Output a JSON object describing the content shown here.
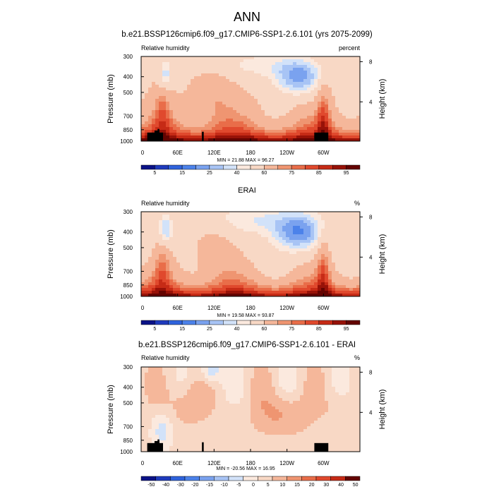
{
  "figure": {
    "title": "ANN"
  },
  "colors": {
    "blue": [
      "#0b1287",
      "#1f3bbd",
      "#2f63dc",
      "#4c82ea",
      "#7aa2ef",
      "#a8c4f5",
      "#d2e2f9"
    ],
    "neutral": "#fbe9de",
    "red": [
      "#f8d8c5",
      "#f5b79a",
      "#ef9571",
      "#e96d49",
      "#e0492d",
      "#c62b16",
      "#971208",
      "#640401"
    ],
    "terrain": "#000000"
  },
  "chart_data": [
    {
      "type": "contour",
      "title": "b.e21.BSSP126cmip6.f09_g17.CMIP6-SSP1-2.6.101 (yrs 2075-2099)",
      "left_label": "Relative humidity",
      "right_label": "percent",
      "ylabel": "Pressure (mb)",
      "y2label": "Height (km)",
      "xticks": [
        "0",
        "60E",
        "120E",
        "180",
        "120W",
        "60W"
      ],
      "xtick_lon": [
        0,
        60,
        120,
        180,
        240,
        300
      ],
      "xlim": [
        0,
        360
      ],
      "yticks": [
        "300",
        "400",
        "500",
        "700",
        "850",
        "1000"
      ],
      "ytick_p": [
        300,
        400,
        500,
        700,
        850,
        1000
      ],
      "ylim": [
        1000,
        300
      ],
      "y2ticks": [
        "8",
        "4"
      ],
      "y2tick_km": [
        8,
        4
      ],
      "stats": "MIN = 21.88 MAX = 96.27",
      "colorbar_labels": [
        "5",
        "15",
        "25",
        "40",
        "60",
        "75",
        "85",
        "95"
      ],
      "colorbar_levels": [
        5,
        10,
        15,
        20,
        25,
        30,
        35,
        40,
        50,
        60,
        65,
        70,
        75,
        80,
        85,
        90,
        95
      ],
      "diff": false
    },
    {
      "type": "contour",
      "title": "ERAI",
      "left_label": "Relative humidity",
      "right_label": "%",
      "ylabel": "Pressure (mb)",
      "y2label": "Height (km)",
      "xticks": [
        "0",
        "60E",
        "120E",
        "180",
        "120W",
        "60W"
      ],
      "xtick_lon": [
        0,
        60,
        120,
        180,
        240,
        300
      ],
      "xlim": [
        0,
        360
      ],
      "yticks": [
        "300",
        "400",
        "500",
        "700",
        "850",
        "1000"
      ],
      "ytick_p": [
        300,
        400,
        500,
        700,
        850,
        1000
      ],
      "ylim": [
        1000,
        300
      ],
      "y2ticks": [
        "8",
        "4"
      ],
      "y2tick_km": [
        8,
        4
      ],
      "stats": "MIN = 19.58 MAX = 93.87",
      "colorbar_labels": [
        "5",
        "15",
        "25",
        "40",
        "60",
        "75",
        "85",
        "95"
      ],
      "colorbar_levels": [
        5,
        10,
        15,
        20,
        25,
        30,
        35,
        40,
        50,
        60,
        65,
        70,
        75,
        80,
        85,
        90,
        95
      ],
      "diff": false
    },
    {
      "type": "contour",
      "title": "b.e21.BSSP126cmip6.f09_g17.CMIP6-SSP1-2.6.101 - ERAI",
      "left_label": "Relative humidity",
      "right_label": "%",
      "ylabel": "Pressure (mb)",
      "y2label": "Height (km)",
      "xticks": [
        "0",
        "60E",
        "120E",
        "180",
        "120W",
        "60W"
      ],
      "xtick_lon": [
        0,
        60,
        120,
        180,
        240,
        300
      ],
      "xlim": [
        0,
        360
      ],
      "yticks": [
        "300",
        "400",
        "500",
        "700",
        "850",
        "1000"
      ],
      "ytick_p": [
        300,
        400,
        500,
        700,
        850,
        1000
      ],
      "ylim": [
        1000,
        300
      ],
      "y2ticks": [
        "8",
        "4"
      ],
      "y2tick_km": [
        8,
        4
      ],
      "stats": "MIN = -20.56 MAX = 16.95",
      "colorbar_labels": [
        "-50",
        "-40",
        "-30",
        "-20",
        "-15",
        "-10",
        "-5",
        "0",
        "5",
        "10",
        "15",
        "20",
        "30",
        "40",
        "50"
      ],
      "colorbar_levels": [
        -50,
        -40,
        -30,
        -20,
        -15,
        -10,
        -5,
        0,
        5,
        10,
        15,
        20,
        30,
        40,
        50
      ],
      "diff": true
    }
  ]
}
